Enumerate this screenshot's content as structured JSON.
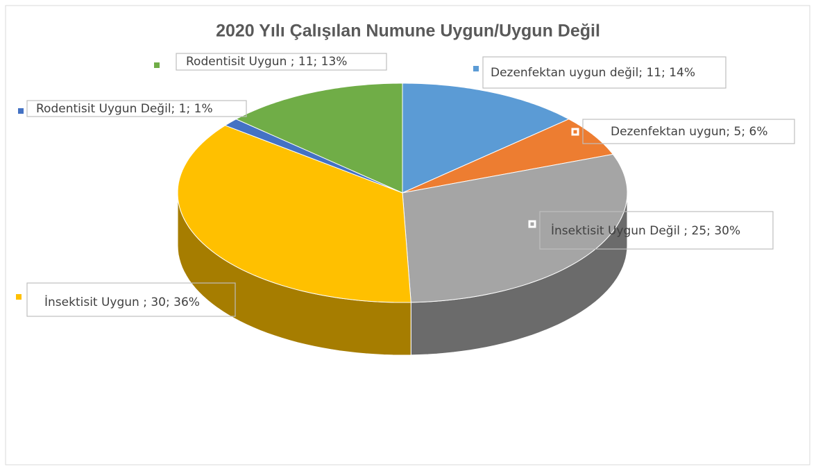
{
  "chart_data": {
    "type": "pie3d",
    "title": "2020 Yılı Çalışılan Numune Uygun/Uygun Değil",
    "values": [
      11,
      5,
      25,
      30,
      1,
      11
    ],
    "value_labels": [
      "Dezenfektan uygun değil; 11; 14%",
      "Dezenfektan uygun; 5; 6%",
      "İnsektisit Uygun Değil ; 25; 30%",
      "İnsektisit Uygun ; 30; 36%",
      "Rodentisit Uygun Değil; 1; 1%",
      "Rodentisit Uygun ; 11; 13%"
    ],
    "colors": [
      "#5b9bd5",
      "#ed7d31",
      "#a5a5a5",
      "#ffc000",
      "#4472c4",
      "#70ad47"
    ]
  }
}
